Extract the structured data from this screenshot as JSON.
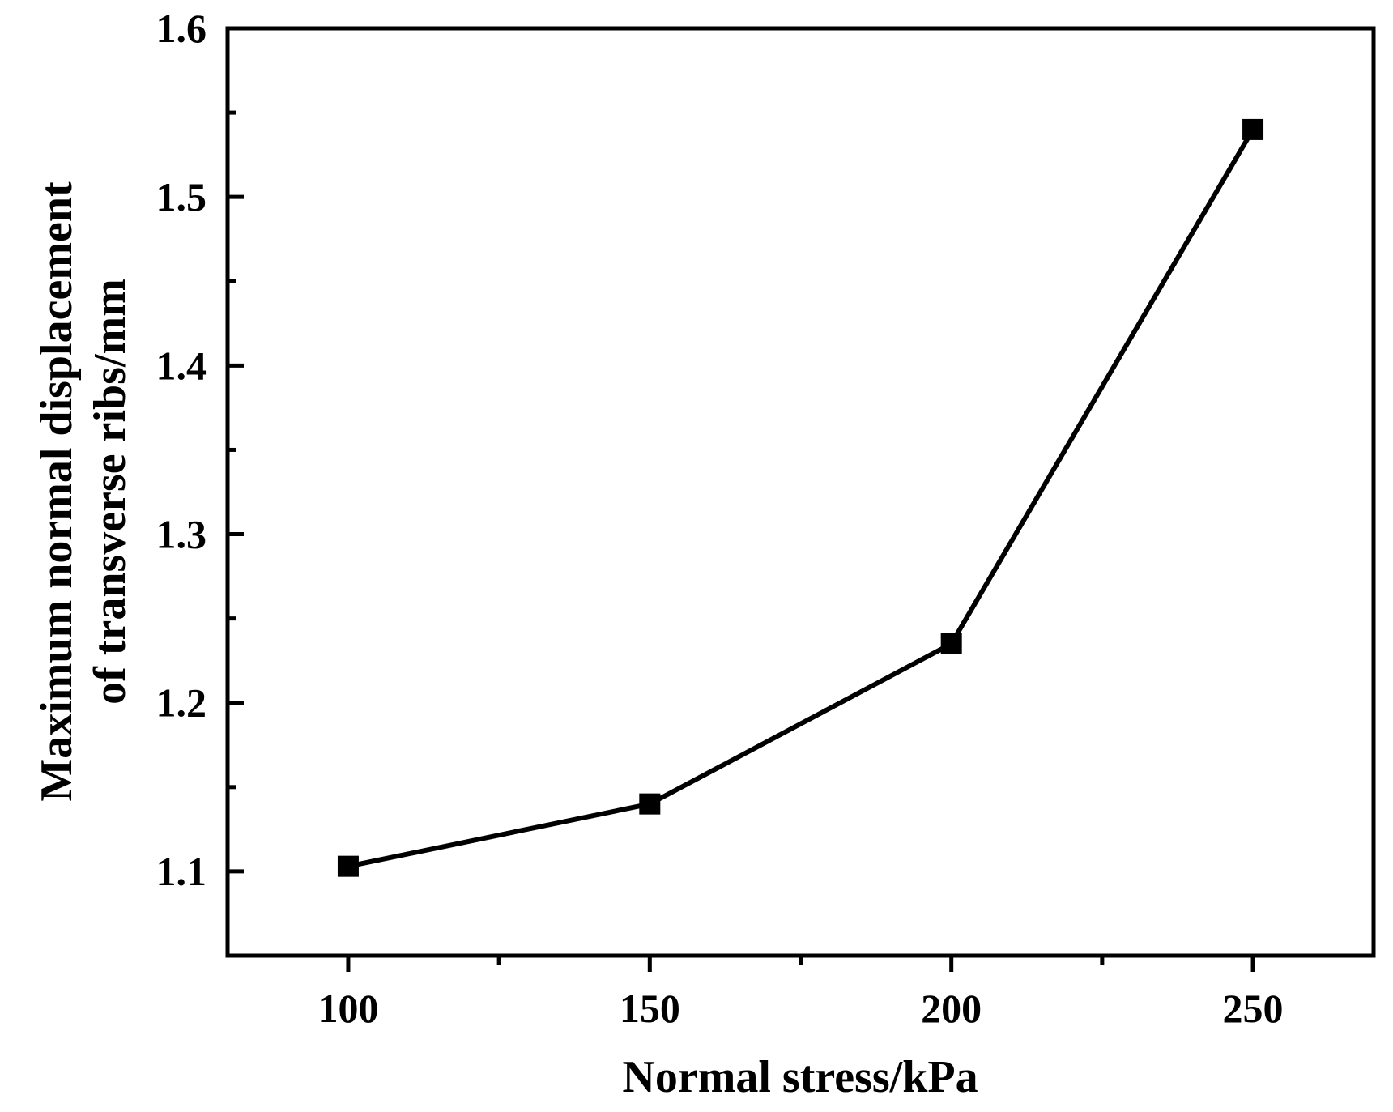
{
  "chart_data": {
    "type": "line",
    "title": "",
    "xlabel": "Normal stress/kPa",
    "ylabel_lines": [
      "Maximum normal displacement",
      "of transverse ribs/mm"
    ],
    "x": [
      100,
      150,
      200,
      250
    ],
    "series": [
      {
        "name": "Maximum normal displacement",
        "values": [
          1.103,
          1.14,
          1.235,
          1.54
        ],
        "marker": "square",
        "color": "#000000"
      }
    ],
    "xlim": [
      80,
      270
    ],
    "ylim": [
      1.05,
      1.6
    ],
    "x_major_ticks": [
      100,
      150,
      200,
      250
    ],
    "x_minor_ticks": [
      125,
      175,
      225
    ],
    "x_tick_labels": [
      "100",
      "150",
      "200",
      "250"
    ],
    "y_major_ticks": [
      1.1,
      1.2,
      1.3,
      1.4,
      1.5,
      1.6
    ],
    "y_minor_ticks": [
      1.15,
      1.25,
      1.35,
      1.45,
      1.55
    ],
    "y_tick_labels": [
      "1.1",
      "1.2",
      "1.3",
      "1.4",
      "1.5",
      "1.6"
    ],
    "grid": false,
    "legend": "none"
  }
}
